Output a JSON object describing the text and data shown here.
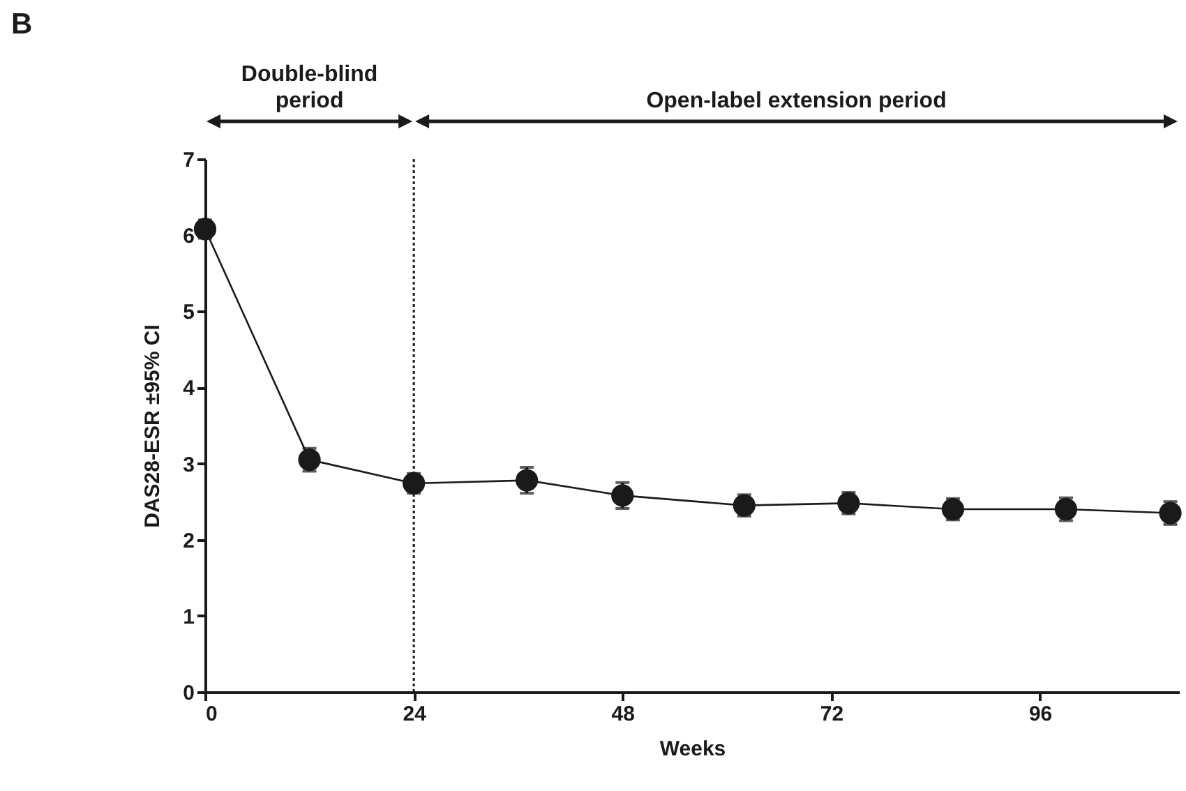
{
  "chart_data": {
    "type": "line",
    "title": "B",
    "xlabel": "Weeks",
    "ylabel": "DAS28-ESR ±95% CI",
    "x": [
      0,
      12,
      24,
      37,
      48,
      62,
      74,
      86,
      99,
      111
    ],
    "series": [
      {
        "color": "#1a1a1a",
        "values": [
          6.08,
          3.05,
          2.74,
          2.78,
          2.58,
          2.45,
          2.48,
          2.4,
          2.4,
          2.35
        ],
        "errors": [
          0.12,
          0.15,
          0.13,
          0.17,
          0.17,
          0.14,
          0.14,
          0.14,
          0.15,
          0.15
        ]
      }
    ],
    "xlim": [
      0,
      112
    ],
    "xticks": [
      0,
      24,
      48,
      72,
      96
    ],
    "ylim": [
      0,
      7
    ],
    "yticks": [
      0,
      1,
      2,
      3,
      4,
      5,
      6,
      7
    ],
    "marker": "circle",
    "line_style": "solid",
    "grid": false,
    "ref_lines": [
      {
        "axis": "x",
        "value": 24,
        "line_style": "dotted"
      }
    ],
    "annotations": [
      "Double-blind period",
      "Open-label extension period"
    ]
  }
}
